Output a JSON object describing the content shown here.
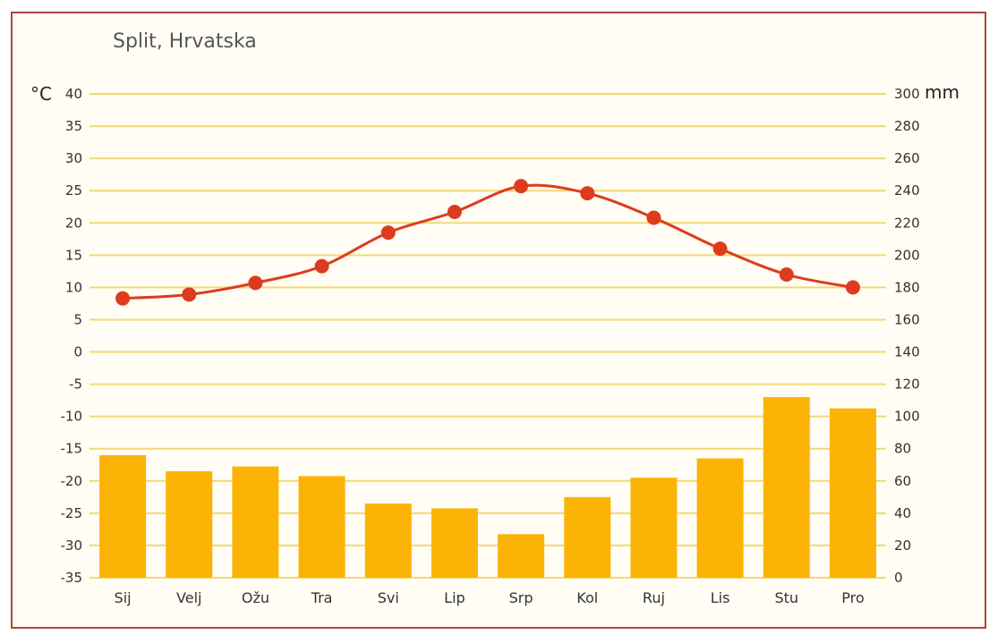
{
  "chart_data": {
    "type": "bar+line",
    "title": "Split, Hrvatska",
    "categories": [
      "Sij",
      "Velj",
      "Ožu",
      "Tra",
      "Svi",
      "Lip",
      "Srp",
      "Kol",
      "Ruj",
      "Lis",
      "Stu",
      "Pro"
    ],
    "temperature": {
      "unit": "°C",
      "axis": "left",
      "ylim": [
        -35,
        40
      ],
      "ticks": [
        40,
        35,
        30,
        25,
        20,
        15,
        10,
        5,
        0,
        -5,
        -10,
        -15,
        -20,
        -25,
        -30,
        -35
      ],
      "values": [
        8.3,
        8.9,
        10.7,
        13.3,
        18.5,
        21.7,
        25.7,
        24.6,
        20.8,
        16.0,
        12.0,
        10.0
      ],
      "color": "#dd3b1e"
    },
    "precipitation": {
      "unit": "mm",
      "axis": "right",
      "ylim": [
        0,
        300
      ],
      "ticks": [
        300,
        280,
        260,
        240,
        220,
        200,
        180,
        160,
        140,
        120,
        100,
        80,
        60,
        40,
        20,
        0
      ],
      "values": [
        76,
        66,
        69,
        63,
        46,
        43,
        27,
        50,
        62,
        74,
        112,
        105
      ],
      "color": "#fbb406"
    },
    "grid": true,
    "grid_color": "#f5d874"
  }
}
